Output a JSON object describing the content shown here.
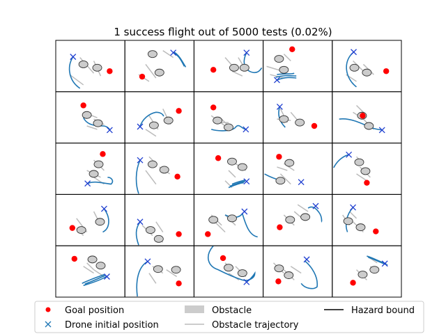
{
  "chart_data": {
    "type": "scatter",
    "title": "1 success flight out of 5000 tests (0.02%)",
    "grid": {
      "rows": 5,
      "cols": 5
    },
    "legend": {
      "placement": "bottom",
      "entries": [
        {
          "label": "Goal position",
          "marker": "dot",
          "color": "#ff0000"
        },
        {
          "label": "Drone initial position",
          "marker": "x",
          "color": "#1f77b4"
        },
        {
          "label": "Obstacle",
          "marker": "patch",
          "color": "#cccccc"
        },
        {
          "label": "Obstacle trajectory",
          "marker": "line",
          "color": "#bbbbbb"
        },
        {
          "label": "Hazard bound",
          "marker": "line",
          "color": "#000000"
        }
      ]
    },
    "colors": {
      "goal": "#ff0000",
      "drone_marker": "#1f3fd0",
      "flight_path": "#1f77b4",
      "obstacle_fill": "#cccccc",
      "obstacle_edge": "#333333",
      "obstacle_trajectory": "#bbbbbb"
    }
  }
}
